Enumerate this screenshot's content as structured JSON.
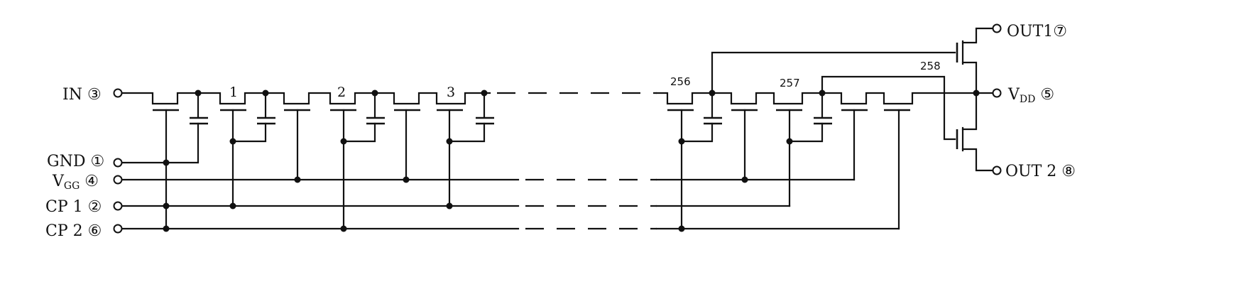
{
  "diagram": {
    "pins": {
      "in": {
        "name": "IN",
        "number": "③"
      },
      "gnd": {
        "name": "GND",
        "number": "①"
      },
      "vgg": {
        "name": "V",
        "sub": "GG",
        "number": "④"
      },
      "cp1": {
        "name": "CP 1",
        "number": "②"
      },
      "cp2": {
        "name": "CP 2",
        "number": "⑥"
      },
      "out1": {
        "name": "OUT1",
        "number": "⑦"
      },
      "vdd": {
        "name": "V",
        "sub": "DD",
        "number": "⑤"
      },
      "out2": {
        "name": "OUT 2",
        "number": "⑧"
      }
    },
    "stages": [
      "1",
      "2",
      "3",
      "256",
      "257",
      "258"
    ]
  }
}
